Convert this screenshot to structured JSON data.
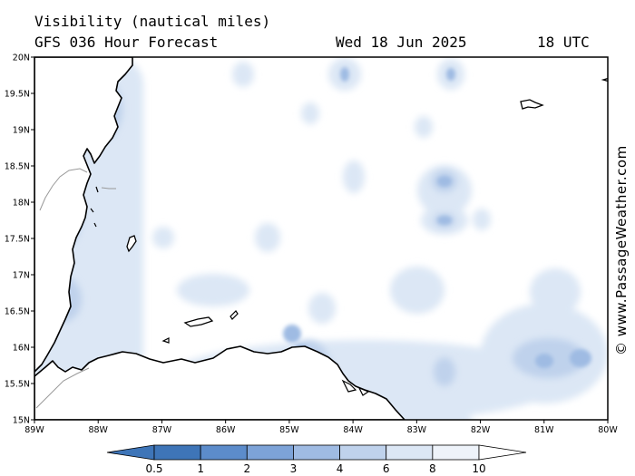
{
  "header": {
    "title": "Visibility (nautical miles)",
    "forecast": "GFS 036 Hour Forecast",
    "date": "Wed 18 Jun 2025",
    "time": "18 UTC"
  },
  "credit": "© www.PassageWeather.com",
  "map": {
    "lon_range": [
      -89,
      -80
    ],
    "lat_range": [
      15,
      20
    ],
    "x_ticks": [
      "89W",
      "88W",
      "87W",
      "86W",
      "85W",
      "84W",
      "83W",
      "82W",
      "81W",
      "80W"
    ],
    "y_ticks": [
      "20N",
      "19.5N",
      "19N",
      "18.5N",
      "18N",
      "17.5N",
      "17N",
      "16.5N",
      "16N",
      "15.5N",
      "15N"
    ],
    "land_color": "#ffffff",
    "coast_color": "#000000"
  },
  "colorbar": {
    "labels": [
      "0.5",
      "1",
      "2",
      "3",
      "4",
      "6",
      "8",
      "10"
    ],
    "colors": [
      "#3e75b8",
      "#5c8ccb",
      "#7da3d8",
      "#9fbbe3",
      "#bfd2ec",
      "#dce7f5",
      "#eef3fa"
    ]
  }
}
